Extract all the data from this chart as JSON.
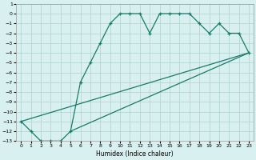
{
  "xlabel": "Humidex (Indice chaleur)",
  "ylabel": "",
  "bg_color": "#d8f0f0",
  "grid_color": "#b0d0d0",
  "line_color": "#1a7a6a",
  "xlim": [
    -0.5,
    23.5
  ],
  "ylim_bottom": -13,
  "ylim_top": 1,
  "xticks": [
    0,
    1,
    2,
    3,
    4,
    5,
    6,
    7,
    8,
    9,
    10,
    11,
    12,
    13,
    14,
    15,
    16,
    17,
    18,
    19,
    20,
    21,
    22,
    23
  ],
  "yticks": [
    1,
    0,
    -1,
    -2,
    -3,
    -4,
    -5,
    -6,
    -7,
    -8,
    -9,
    -10,
    -11,
    -12,
    -13
  ],
  "line1": {
    "x": [
      0,
      1,
      2,
      3,
      4,
      5,
      6,
      7,
      8,
      9,
      10,
      11,
      12,
      13,
      14,
      15,
      16,
      17,
      18,
      19,
      20,
      21,
      22,
      23
    ],
    "y": [
      -11,
      -12,
      -13,
      -13,
      -13,
      -12,
      -7,
      -5,
      -3,
      -1,
      0,
      0,
      0,
      -2,
      0,
      0,
      0,
      0,
      -1,
      -2,
      -1,
      -2,
      -2,
      -4
    ]
  },
  "line2": {
    "x": [
      0,
      23
    ],
    "y": [
      -11,
      -4
    ]
  },
  "line3": {
    "x": [
      5,
      23
    ],
    "y": [
      -12,
      -4
    ]
  }
}
